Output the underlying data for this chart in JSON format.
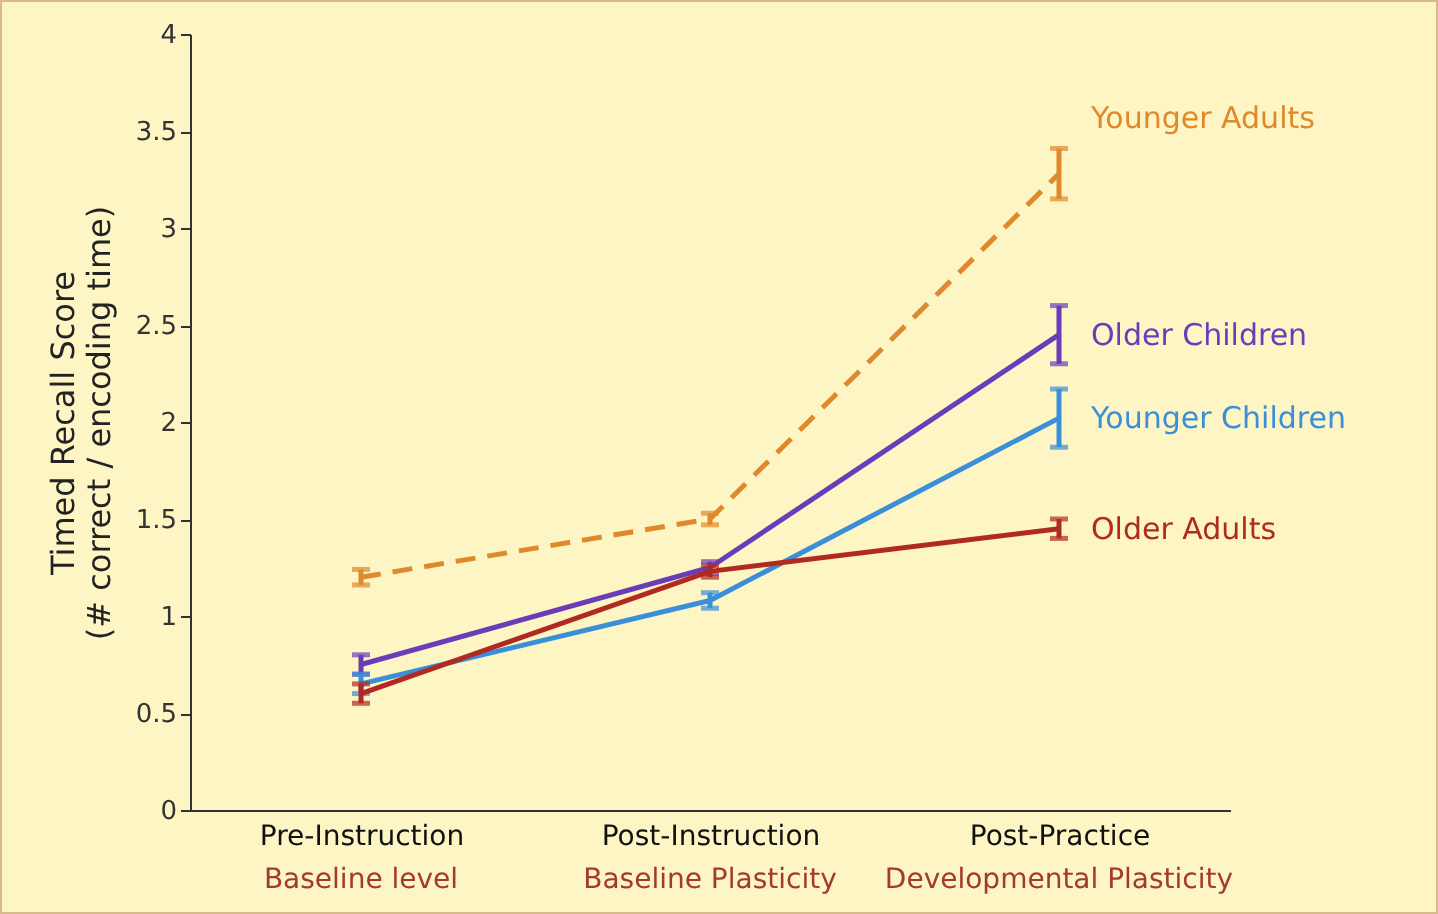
{
  "chart_data": {
    "type": "line",
    "ylabel": "Timed Recall Score\n(# correct / encoding time)",
    "categories": [
      "Pre-Instruction",
      "Post-Instruction",
      "Post-Practice"
    ],
    "annotations": [
      "Baseline level",
      "Baseline Plasticity",
      "Developmental Plasticity"
    ],
    "series": [
      {
        "name": "Younger Adults",
        "color": "#e0892c",
        "line_style": "dashed",
        "values": [
          1.2,
          1.5,
          3.28
        ],
        "errors": [
          0.04,
          0.03,
          0.13
        ]
      },
      {
        "name": "Older Children",
        "color": "#6b3cb8",
        "line_style": "solid",
        "values": [
          0.75,
          1.25,
          2.45
        ],
        "errors": [
          0.05,
          0.03,
          0.15
        ]
      },
      {
        "name": "Younger Children",
        "color": "#3b8fd9",
        "line_style": "solid",
        "values": [
          0.65,
          1.08,
          2.02
        ],
        "errors": [
          0.05,
          0.04,
          0.15
        ]
      },
      {
        "name": "Older Adults",
        "color": "#b02a22",
        "line_style": "solid",
        "values": [
          0.6,
          1.23,
          1.45
        ],
        "errors": [
          0.05,
          0.03,
          0.05
        ]
      }
    ],
    "ylim": [
      0,
      4
    ],
    "yticks": [
      0,
      0.5,
      1,
      1.5,
      2,
      2.5,
      3,
      3.5,
      4
    ],
    "grid": false
  }
}
